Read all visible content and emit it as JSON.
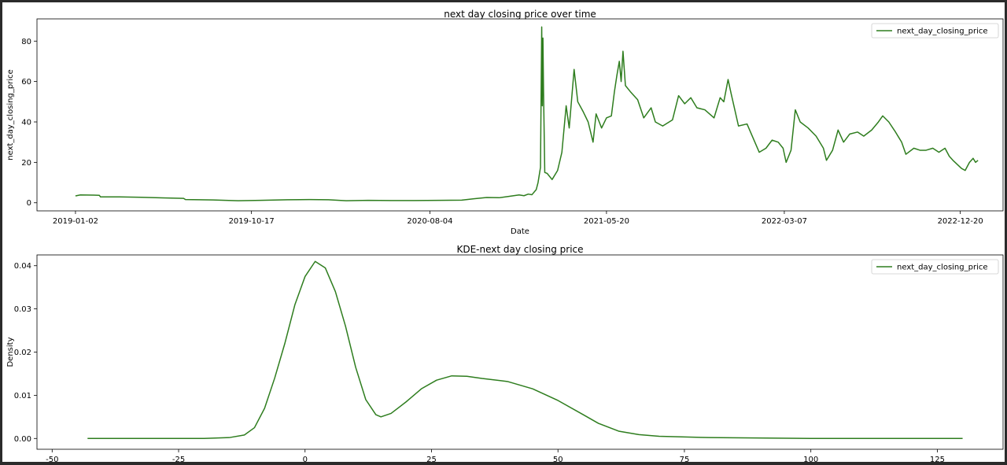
{
  "chart_data": [
    {
      "type": "line",
      "title": "next day closing price over time",
      "xlabel": "Date",
      "ylabel": "next_day_closing_price",
      "xticks": [
        "2019-01-02",
        "2019-10-17",
        "2020-08-04",
        "2021-05-20",
        "2022-03-07",
        "2022-12-20"
      ],
      "xlim": [
        "2018-10-31",
        "2023-02-28"
      ],
      "ylim": [
        -4,
        91
      ],
      "yticks": [
        0,
        20,
        40,
        60,
        80
      ],
      "grid": false,
      "legend": "top-right",
      "series": [
        {
          "name": "next_day_closing_price",
          "color": "#2e7d1e",
          "points": [
            [
              "2019-01-02",
              3.4
            ],
            [
              "2019-01-10",
              3.9
            ],
            [
              "2019-02-01",
              3.8
            ],
            [
              "2019-02-10",
              3.7
            ],
            [
              "2019-02-12",
              2.9
            ],
            [
              "2019-03-15",
              2.9
            ],
            [
              "2019-04-20",
              2.7
            ],
            [
              "2019-05-25",
              2.4
            ],
            [
              "2019-06-28",
              2.2
            ],
            [
              "2019-07-01",
              1.6
            ],
            [
              "2019-08-15",
              1.4
            ],
            [
              "2019-09-25",
              1.0
            ],
            [
              "2019-11-01",
              1.2
            ],
            [
              "2019-12-15",
              1.5
            ],
            [
              "2020-01-20",
              1.6
            ],
            [
              "2020-02-20",
              1.5
            ],
            [
              "2020-03-20",
              1.0
            ],
            [
              "2020-04-25",
              1.2
            ],
            [
              "2020-06-01",
              1.1
            ],
            [
              "2020-07-10",
              1.1
            ],
            [
              "2020-08-20",
              1.2
            ],
            [
              "2020-09-25",
              1.3
            ],
            [
              "2020-10-15",
              2.0
            ],
            [
              "2020-11-05",
              2.6
            ],
            [
              "2020-11-25",
              2.5
            ],
            [
              "2020-12-10",
              3.1
            ],
            [
              "2020-12-28",
              3.9
            ],
            [
              "2021-01-05",
              3.5
            ],
            [
              "2021-01-12",
              4.3
            ],
            [
              "2021-01-18",
              4.0
            ],
            [
              "2021-01-25",
              6.5
            ],
            [
              "2021-01-28",
              10.0
            ],
            [
              "2021-02-01",
              17.5
            ],
            [
              "2021-02-03",
              87.0
            ],
            [
              "2021-02-04",
              48.0
            ],
            [
              "2021-02-05",
              81.5
            ],
            [
              "2021-02-06",
              55.0
            ],
            [
              "2021-02-08",
              15.0
            ],
            [
              "2021-02-12",
              14.5
            ],
            [
              "2021-02-20",
              11.5
            ],
            [
              "2021-03-01",
              16.0
            ],
            [
              "2021-03-08",
              25.0
            ],
            [
              "2021-03-15",
              48.0
            ],
            [
              "2021-03-20",
              37.0
            ],
            [
              "2021-03-28",
              66.0
            ],
            [
              "2021-04-03",
              50.0
            ],
            [
              "2021-04-12",
              45.0
            ],
            [
              "2021-04-20",
              40.0
            ],
            [
              "2021-04-28",
              30.0
            ],
            [
              "2021-05-03",
              44.0
            ],
            [
              "2021-05-12",
              37.0
            ],
            [
              "2021-05-20",
              42.0
            ],
            [
              "2021-05-28",
              43.0
            ],
            [
              "2021-06-02",
              55.0
            ],
            [
              "2021-06-06",
              63.0
            ],
            [
              "2021-06-10",
              70.0
            ],
            [
              "2021-06-13",
              60.0
            ],
            [
              "2021-06-16",
              75.0
            ],
            [
              "2021-06-20",
              58.0
            ],
            [
              "2021-06-28",
              55.0
            ],
            [
              "2021-07-10",
              51.0
            ],
            [
              "2021-07-20",
              42.0
            ],
            [
              "2021-08-01",
              47.0
            ],
            [
              "2021-08-08",
              40.0
            ],
            [
              "2021-08-20",
              38.0
            ],
            [
              "2021-09-05",
              41.0
            ],
            [
              "2021-09-15",
              53.0
            ],
            [
              "2021-09-25",
              49.0
            ],
            [
              "2021-10-05",
              52.0
            ],
            [
              "2021-10-15",
              47.0
            ],
            [
              "2021-10-28",
              46.0
            ],
            [
              "2021-11-12",
              42.0
            ],
            [
              "2021-11-22",
              52.0
            ],
            [
              "2021-11-28",
              50.0
            ],
            [
              "2021-12-05",
              61.0
            ],
            [
              "2021-12-10",
              54.0
            ],
            [
              "2021-12-16",
              46.0
            ],
            [
              "2021-12-22",
              38.0
            ],
            [
              "2022-01-05",
              39.0
            ],
            [
              "2022-01-15",
              32.0
            ],
            [
              "2022-01-25",
              25.0
            ],
            [
              "2022-02-05",
              27.0
            ],
            [
              "2022-02-15",
              31.0
            ],
            [
              "2022-02-25",
              30.0
            ],
            [
              "2022-03-05",
              27.0
            ],
            [
              "2022-03-10",
              20.0
            ],
            [
              "2022-03-18",
              26.0
            ],
            [
              "2022-03-25",
              46.0
            ],
            [
              "2022-04-02",
              40.0
            ],
            [
              "2022-04-15",
              37.0
            ],
            [
              "2022-04-28",
              33.0
            ],
            [
              "2022-05-10",
              27.0
            ],
            [
              "2022-05-15",
              21.0
            ],
            [
              "2022-05-25",
              26.0
            ],
            [
              "2022-06-03",
              36.0
            ],
            [
              "2022-06-12",
              30.0
            ],
            [
              "2022-06-22",
              34.0
            ],
            [
              "2022-07-05",
              35.0
            ],
            [
              "2022-07-15",
              33.0
            ],
            [
              "2022-07-28",
              36.0
            ],
            [
              "2022-08-08",
              40.0
            ],
            [
              "2022-08-15",
              43.0
            ],
            [
              "2022-08-25",
              40.0
            ],
            [
              "2022-09-05",
              35.0
            ],
            [
              "2022-09-15",
              30.0
            ],
            [
              "2022-09-22",
              24.0
            ],
            [
              "2022-10-05",
              27.0
            ],
            [
              "2022-10-15",
              26.0
            ],
            [
              "2022-10-25",
              26.0
            ],
            [
              "2022-11-05",
              27.0
            ],
            [
              "2022-11-15",
              25.0
            ],
            [
              "2022-11-25",
              27.0
            ],
            [
              "2022-12-02",
              23.0
            ],
            [
              "2022-12-08",
              21.0
            ],
            [
              "2022-12-15",
              19.0
            ],
            [
              "2022-12-22",
              17.0
            ],
            [
              "2022-12-28",
              16.0
            ],
            [
              "2023-01-04",
              20.0
            ],
            [
              "2023-01-10",
              22.0
            ],
            [
              "2023-01-14",
              20.0
            ],
            [
              "2023-01-18",
              21.0
            ]
          ]
        }
      ]
    },
    {
      "type": "line",
      "title": "KDE-next day closing price",
      "xlabel": "",
      "ylabel": "Density",
      "xticks": [
        -50,
        -25,
        0,
        25,
        50,
        75,
        100,
        125
      ],
      "xlim": [
        -53,
        138
      ],
      "ylim": [
        -0.0025,
        0.0425
      ],
      "yticks": [
        0.0,
        0.01,
        0.02,
        0.03,
        0.04
      ],
      "ytick_labels": [
        "0.00",
        "0.01",
        "0.02",
        "0.03",
        "0.04"
      ],
      "grid": false,
      "legend": "top-right",
      "series": [
        {
          "name": "next_day_closing_price",
          "color": "#2e7d1e",
          "points": [
            [
              -43,
              0
            ],
            [
              -30,
              0
            ],
            [
              -20,
              0
            ],
            [
              -15,
              0.0002
            ],
            [
              -12,
              0.0008
            ],
            [
              -10,
              0.0025
            ],
            [
              -8,
              0.007
            ],
            [
              -6,
              0.014
            ],
            [
              -4,
              0.022
            ],
            [
              -2,
              0.031
            ],
            [
              0,
              0.0375
            ],
            [
              2,
              0.041
            ],
            [
              4,
              0.0395
            ],
            [
              6,
              0.034
            ],
            [
              8,
              0.026
            ],
            [
              10,
              0.0165
            ],
            [
              12,
              0.009
            ],
            [
              14,
              0.0055
            ],
            [
              15,
              0.005
            ],
            [
              17,
              0.0058
            ],
            [
              20,
              0.0085
            ],
            [
              23,
              0.0115
            ],
            [
              26,
              0.0135
            ],
            [
              29,
              0.0145
            ],
            [
              32,
              0.0144
            ],
            [
              35,
              0.0139
            ],
            [
              40,
              0.0132
            ],
            [
              45,
              0.0115
            ],
            [
              50,
              0.0088
            ],
            [
              55,
              0.0055
            ],
            [
              58,
              0.0035
            ],
            [
              62,
              0.0017
            ],
            [
              66,
              0.0009
            ],
            [
              70,
              0.0005
            ],
            [
              80,
              0.0002
            ],
            [
              100,
              0
            ],
            [
              130,
              0
            ]
          ]
        }
      ]
    }
  ]
}
